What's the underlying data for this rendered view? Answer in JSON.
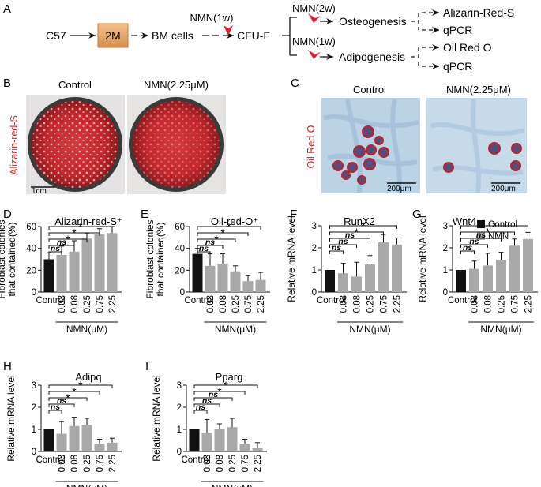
{
  "panel_labels": {
    "A": "A",
    "B": "B",
    "C": "C",
    "D": "D",
    "E": "E",
    "F": "F",
    "G": "G",
    "H": "H",
    "I": "I"
  },
  "flow": {
    "c57": "C57",
    "age": "2M",
    "bm_cells": "BM cells",
    "nmn_1w_top": "NMN(1w)",
    "cfu_f": "CFU-F",
    "nmn_2w": "NMN(2w)",
    "nmn_1w_lower": "NMN(1w)",
    "osteogenesis": "Osteogenesis",
    "adipogenesis": "Adipogenesis",
    "alizarin": "Alizarin-Red-S",
    "qpcr1": "qPCR",
    "oilredo": "Oil Red O",
    "qpcr2": "qPCR",
    "arrow_color": "#e0202e",
    "box_color": "#e8a86a"
  },
  "panel_b": {
    "control": "Control",
    "treated": "NMN(2.25μM)",
    "side_label": "Alizarin-red-S",
    "scale": "1cm"
  },
  "panel_c": {
    "control": "Control",
    "treated": "NMN(2.25μM)",
    "side_label": "Oil Red O",
    "scale1": "200μm",
    "scale2": "200μm"
  },
  "legend": {
    "control": "Control",
    "nmn": "NMN",
    "control_color": "#111111",
    "nmn_color": "#a9a9a9"
  },
  "common": {
    "xgroup": "NMN(μM)",
    "control_tick": "Control",
    "sig": "*",
    "ns": "ns"
  },
  "chart_data": [
    {
      "id": "D",
      "type": "bar",
      "title": "Alizarin-red-S⁺",
      "ylabel": [
        "Fibroblast colonies",
        "that contained(%)"
      ],
      "categories": [
        "Control",
        "0.03",
        "0.08",
        "0.25",
        "0.75",
        "2.25"
      ],
      "values": [
        30,
        34,
        37,
        49,
        53,
        54
      ],
      "errors": [
        6,
        8,
        10,
        5,
        5,
        6
      ],
      "ylim": [
        0,
        60
      ],
      "yticks": [
        "0",
        "20",
        "40",
        "60"
      ],
      "comparisons": [
        "ns",
        "ns",
        "*",
        "*",
        "*"
      ]
    },
    {
      "id": "E",
      "type": "bar",
      "title": "Oil-red-O⁺",
      "ylabel": [
        "Fibroblast colonies",
        "that contained(%)"
      ],
      "categories": [
        "Control",
        "0.03",
        "0.08",
        "0.25",
        "0.75",
        "2.25"
      ],
      "values": [
        35,
        24,
        26,
        19,
        10,
        11
      ],
      "errors": [
        5,
        11,
        9,
        5,
        5,
        7
      ],
      "ylim": [
        0,
        60
      ],
      "yticks": [
        "0",
        "20",
        "40",
        "60"
      ],
      "comparisons": [
        "ns",
        "ns",
        "*",
        "*",
        "*"
      ]
    },
    {
      "id": "F",
      "type": "bar",
      "title": "RunX2",
      "ylabel": [
        "Relative mRNA level"
      ],
      "categories": [
        "Control",
        "0.03",
        "0.08",
        "0.25",
        "0.75",
        "2.25"
      ],
      "values": [
        1.0,
        0.85,
        0.7,
        1.25,
        2.25,
        2.15
      ],
      "errors": [
        0,
        0.45,
        0.65,
        0.4,
        0.35,
        0.3
      ],
      "ylim": [
        0,
        3
      ],
      "yticks": [
        "0",
        "1",
        "2",
        "3"
      ],
      "comparisons": [
        "ns",
        "ns",
        "ns",
        "*",
        "*"
      ]
    },
    {
      "id": "G",
      "type": "bar",
      "title": "Wnt4",
      "ylabel": [
        "Relative mRNA level"
      ],
      "categories": [
        "Control",
        "0.03",
        "0.08",
        "0.25",
        "0.75",
        "2.25"
      ],
      "values": [
        1.0,
        1.05,
        1.2,
        1.45,
        2.1,
        2.4
      ],
      "errors": [
        0,
        0.35,
        0.55,
        0.35,
        0.3,
        0.3
      ],
      "ylim": [
        0,
        3
      ],
      "yticks": [
        "0",
        "1",
        "2",
        "3"
      ],
      "comparisons": [
        "ns",
        "ns",
        "ns",
        "*",
        "*"
      ]
    },
    {
      "id": "H",
      "type": "bar",
      "title": "Adipq",
      "ylabel": [
        "Relative mRNA level"
      ],
      "categories": [
        "Control",
        "0.03",
        "0.08",
        "0.25",
        "0.75",
        "2.25"
      ],
      "values": [
        1.0,
        0.8,
        1.15,
        1.2,
        0.35,
        0.4
      ],
      "errors": [
        0,
        0.55,
        0.4,
        0.3,
        0.2,
        0.2
      ],
      "ylim": [
        0,
        3
      ],
      "yticks": [
        "0",
        "1",
        "2",
        "3"
      ],
      "comparisons": [
        "ns",
        "ns",
        "*",
        "*",
        "*"
      ]
    },
    {
      "id": "I",
      "type": "bar",
      "title": "Pparg",
      "ylabel": [
        "Relative mRNA level"
      ],
      "categories": [
        "Control",
        "0.03",
        "0.08",
        "0.25",
        "0.75",
        "2.25"
      ],
      "values": [
        1.0,
        0.85,
        1.0,
        1.1,
        0.35,
        0.15
      ],
      "errors": [
        0,
        0.6,
        0.25,
        0.4,
        0.2,
        0.25
      ],
      "ylim": [
        0,
        3
      ],
      "yticks": [
        "0",
        "1",
        "2",
        "3"
      ],
      "comparisons": [
        "ns",
        "ns",
        "ns",
        "*",
        "*"
      ]
    }
  ]
}
